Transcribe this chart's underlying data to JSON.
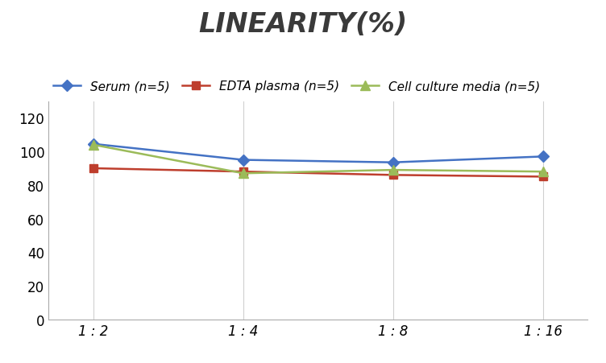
{
  "title": "LINEARITY(%)",
  "x_labels": [
    "1 : 2",
    "1 : 4",
    "1 : 8",
    "1 : 16"
  ],
  "x_positions": [
    0,
    1,
    2,
    3
  ],
  "series": [
    {
      "label": "Serum (n=5)",
      "values": [
        104.5,
        95,
        93.5,
        97
      ],
      "color": "#4472C4",
      "marker": "D",
      "marker_size": 7,
      "linestyle": "-"
    },
    {
      "label": "EDTA plasma (n=5)",
      "values": [
        90,
        88,
        86,
        85
      ],
      "color": "#BE3E2D",
      "marker": "s",
      "marker_size": 7,
      "linestyle": "-"
    },
    {
      "label": "Cell culture media (n=5)",
      "values": [
        104,
        87,
        89,
        88
      ],
      "color": "#9BBB59",
      "marker": "^",
      "marker_size": 8,
      "linestyle": "-"
    }
  ],
  "ylim": [
    0,
    130
  ],
  "yticks": [
    0,
    20,
    40,
    60,
    80,
    100,
    120
  ],
  "background_color": "#ffffff",
  "grid_color": "#d0d0d0",
  "title_fontsize": 24,
  "title_fontstyle": "italic",
  "title_fontweight": "bold",
  "legend_fontsize": 11,
  "tick_fontsize": 12,
  "title_color": "#3a3a3a"
}
